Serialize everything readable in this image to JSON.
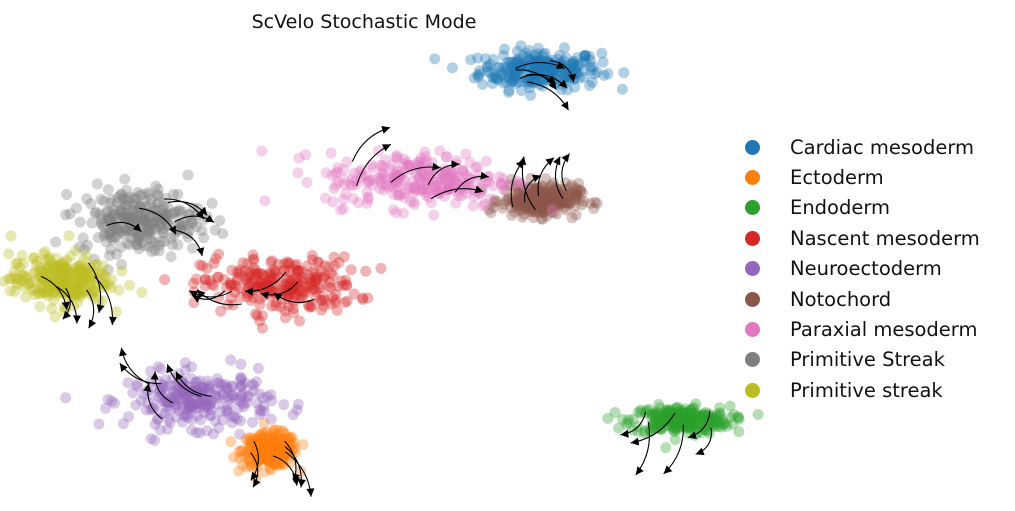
{
  "chart_data": {
    "type": "scatter",
    "title": "ScVelo Stochastic Mode",
    "xlabel": "",
    "ylabel": "",
    "axes_visible": false,
    "grid": false,
    "overlay": "velocity streamlines (black arrows)",
    "legend_position": "right",
    "series": [
      {
        "name": "Cardiac mesoderm",
        "color": "#1f77b4",
        "center": [
          5.2,
          8.6
        ],
        "spread": [
          0.55,
          0.35
        ]
      },
      {
        "name": "Ectoderm",
        "color": "#ff7f0e",
        "center": [
          2.5,
          1.0
        ],
        "spread": [
          0.25,
          0.3
        ]
      },
      {
        "name": "Endoderm",
        "color": "#2ca02c",
        "center": [
          6.6,
          1.6
        ],
        "spread": [
          0.45,
          0.25
        ]
      },
      {
        "name": "Nascent mesoderm",
        "color": "#d62728",
        "center": [
          2.6,
          4.3
        ],
        "spread": [
          0.7,
          0.5
        ]
      },
      {
        "name": "Neuroectoderm",
        "color": "#9467bd",
        "center": [
          1.8,
          2.0
        ],
        "spread": [
          0.65,
          0.5
        ]
      },
      {
        "name": "Notochord",
        "color": "#8c564b",
        "center": [
          5.2,
          6.0
        ],
        "spread": [
          0.35,
          0.3
        ]
      },
      {
        "name": "Paraxial mesoderm",
        "color": "#e377c2",
        "center": [
          4.0,
          6.4
        ],
        "spread": [
          0.85,
          0.5
        ]
      },
      {
        "name": "Primitive Streak",
        "color": "#7f7f7f",
        "center": [
          1.2,
          5.6
        ],
        "spread": [
          0.55,
          0.6
        ]
      },
      {
        "name": "Primitive streak",
        "color": "#bcbd22",
        "center": [
          0.4,
          4.4
        ],
        "spread": [
          0.45,
          0.45
        ]
      }
    ]
  }
}
